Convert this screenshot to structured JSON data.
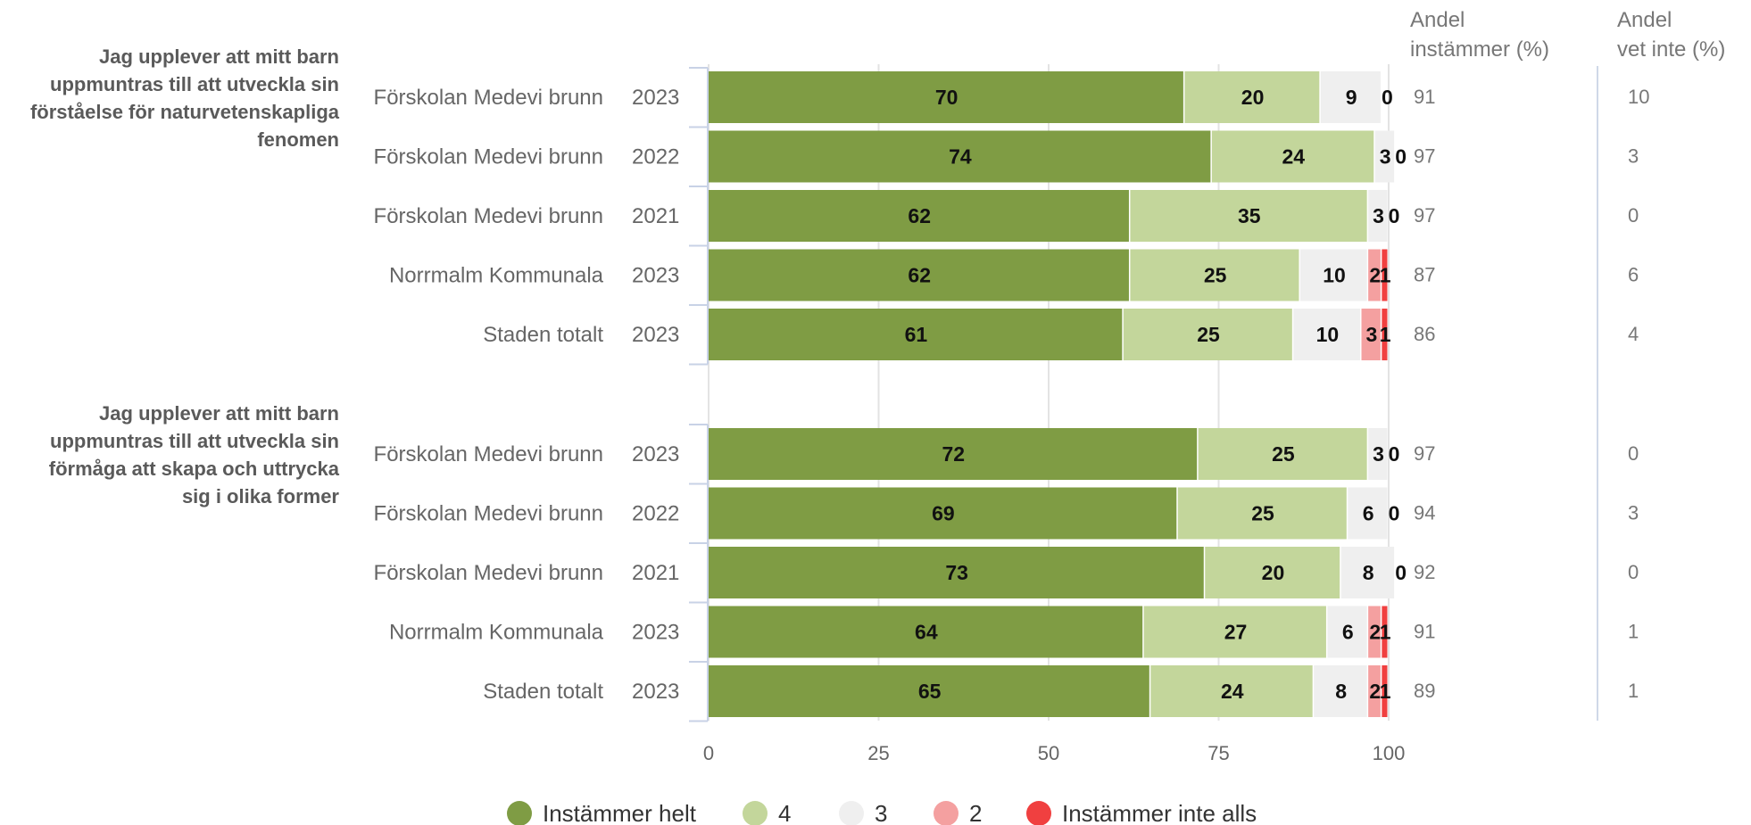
{
  "chart_data": {
    "type": "bar",
    "orientation": "horizontal",
    "stacked": true,
    "xlim": [
      0,
      100
    ],
    "x_ticks": [
      "0",
      "25",
      "50",
      "75",
      "100"
    ],
    "grid": true,
    "legend_position": "bottom",
    "column_headers": {
      "agree": [
        "Andel",
        "instämmer (%)"
      ],
      "dont_know": [
        "Andel",
        "vet inte (%)"
      ]
    },
    "series": [
      {
        "name": "Instämmer helt",
        "color": "#7f9c44"
      },
      {
        "name": "4",
        "color": "#c3d69b"
      },
      {
        "name": "3",
        "color": "#efefef"
      },
      {
        "name": "2",
        "color": "#f4a0a0"
      },
      {
        "name": "Instämmer inte alls",
        "color": "#f04040"
      }
    ],
    "groups": [
      {
        "question": [
          "Jag upplever att mitt barn",
          "uppmuntras till att utveckla sin",
          "förståelse för naturvetenskapliga",
          "fenomen"
        ],
        "rows": [
          {
            "label": "Förskolan Medevi brunn",
            "year": "2023",
            "values": [
              70,
              20,
              9,
              0,
              0
            ],
            "labels": [
              "70",
              "20",
              "9",
              "0",
              ""
            ],
            "agree": "91",
            "dont_know": "10"
          },
          {
            "label": "Förskolan Medevi brunn",
            "year": "2022",
            "values": [
              74,
              24,
              3,
              0,
              0
            ],
            "labels": [
              "74",
              "24",
              "3",
              "0",
              ""
            ],
            "agree": "97",
            "dont_know": "3"
          },
          {
            "label": "Förskolan Medevi brunn",
            "year": "2021",
            "values": [
              62,
              35,
              3,
              0,
              0
            ],
            "labels": [
              "62",
              "35",
              "3",
              "0",
              ""
            ],
            "agree": "97",
            "dont_know": "0"
          },
          {
            "label": "Norrmalm Kommunala",
            "year": "2023",
            "values": [
              62,
              25,
              10,
              2,
              1
            ],
            "labels": [
              "62",
              "25",
              "10",
              "2",
              "1"
            ],
            "agree": "87",
            "dont_know": "6"
          },
          {
            "label": "Staden totalt",
            "year": "2023",
            "values": [
              61,
              25,
              10,
              3,
              1
            ],
            "labels": [
              "61",
              "25",
              "10",
              "3",
              "1"
            ],
            "agree": "86",
            "dont_know": "4"
          }
        ]
      },
      {
        "question": [
          "Jag upplever att mitt barn",
          "uppmuntras till att utveckla sin",
          "förmåga att skapa och uttrycka",
          "sig i olika former"
        ],
        "rows": [
          {
            "label": "Förskolan Medevi brunn",
            "year": "2023",
            "values": [
              72,
              25,
              3,
              0,
              0
            ],
            "labels": [
              "72",
              "25",
              "3",
              "0",
              ""
            ],
            "agree": "97",
            "dont_know": "0"
          },
          {
            "label": "Förskolan Medevi brunn",
            "year": "2022",
            "values": [
              69,
              25,
              6,
              0,
              0
            ],
            "labels": [
              "69",
              "25",
              "6",
              "0",
              ""
            ],
            "agree": "94",
            "dont_know": "3"
          },
          {
            "label": "Förskolan Medevi brunn",
            "year": "2021",
            "values": [
              73,
              20,
              8,
              0,
              0
            ],
            "labels": [
              "73",
              "20",
              "8",
              "0",
              ""
            ],
            "agree": "92",
            "dont_know": "0"
          },
          {
            "label": "Norrmalm Kommunala",
            "year": "2023",
            "values": [
              64,
              27,
              6,
              2,
              1
            ],
            "labels": [
              "64",
              "27",
              "6",
              "2",
              "1"
            ],
            "agree": "91",
            "dont_know": "1"
          },
          {
            "label": "Staden totalt",
            "year": "2023",
            "values": [
              65,
              24,
              8,
              2,
              1
            ],
            "labels": [
              "65",
              "24",
              "8",
              "2",
              "1"
            ],
            "agree": "89",
            "dont_know": "1"
          }
        ]
      }
    ]
  }
}
